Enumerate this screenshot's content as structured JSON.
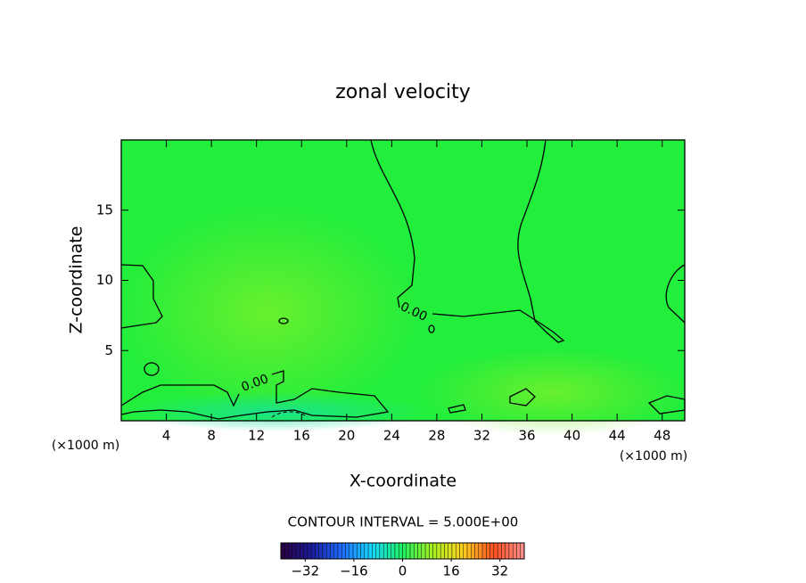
{
  "chart_data": {
    "type": "contour",
    "title": "zonal velocity",
    "x_label": "X-coordinate",
    "y_label": "Z-coordinate",
    "x_unit_label": "(×1000 m)",
    "x_unit_label_right": "(×1000 m)",
    "xlim": [
      0,
      50
    ],
    "xticks": [
      4,
      8,
      12,
      16,
      20,
      24,
      28,
      32,
      36,
      40,
      44,
      48
    ],
    "ylim": [
      0,
      20
    ],
    "yticks": [
      5,
      10,
      15
    ],
    "contour_interval_text": "CONTOUR INTERVAL = 5.000E+00",
    "contour_levels": [
      {
        "value": 0,
        "label": "0.00"
      }
    ],
    "clim": [
      -40,
      40
    ],
    "cticks": [
      {
        "value": -32,
        "label": "−32"
      },
      {
        "value": -16,
        "label": "−16"
      },
      0,
      16,
      32
    ],
    "colormap": [
      "#2a0040",
      "#1a1a9a",
      "#1e6cff",
      "#16d8ff",
      "#1ef060",
      "#a8f020",
      "#ffd020",
      "#ff5020",
      "#ff9090"
    ],
    "field_color": "#22ee3c"
  }
}
